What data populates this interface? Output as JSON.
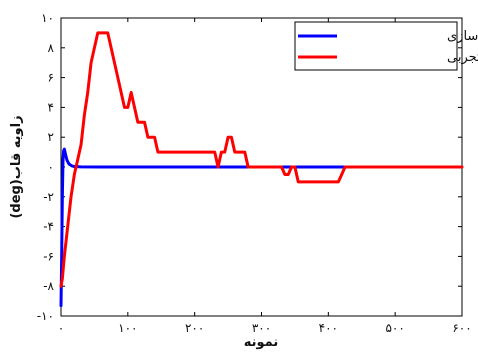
{
  "chart_data": {
    "type": "line",
    "xlabel": "نمونه",
    "ylabel": "زاویه قاب(deg)",
    "xlim": [
      0,
      600
    ],
    "ylim": [
      -10,
      10
    ],
    "x_ticks": [
      0,
      100,
      200,
      300,
      400,
      500,
      600
    ],
    "y_ticks": [
      -10,
      -8,
      -6,
      -4,
      -2,
      0,
      2,
      4,
      6,
      8,
      10
    ],
    "x_tick_labels": [
      "۰",
      "۱۰۰",
      "۲۰۰",
      "۳۰۰",
      "۴۰۰",
      "۵۰۰",
      "۶۰۰"
    ],
    "y_tick_labels": [
      "-۱۰",
      "-۸",
      "-۶",
      "-۴",
      "-۲",
      "۰",
      "۲",
      "۴",
      "۶",
      "۸",
      "۱۰"
    ],
    "grid": false,
    "legend_position": "top-right",
    "series": [
      {
        "name": "نتایج شبیه سازی",
        "color": "#0000ff",
        "x": [
          0,
          1,
          2,
          3,
          4,
          5,
          6,
          7,
          9,
          12,
          16,
          20,
          30,
          60,
          100,
          200,
          300,
          400,
          440
        ],
        "y": [
          -9.3,
          -6.0,
          -2.0,
          0.5,
          1.1,
          1.2,
          1.0,
          0.8,
          0.45,
          0.2,
          0.08,
          0.03,
          0.01,
          0.0,
          0.0,
          0.0,
          0.0,
          0.0,
          0.0
        ]
      },
      {
        "name": "داده های تجربی",
        "color": "#ff0000",
        "x": [
          0,
          2,
          5,
          10,
          15,
          20,
          25,
          30,
          35,
          40,
          45,
          50,
          55,
          60,
          65,
          70,
          75,
          80,
          85,
          90,
          95,
          100,
          105,
          110,
          115,
          120,
          125,
          130,
          135,
          140,
          145,
          150,
          155,
          160,
          170,
          180,
          190,
          200,
          210,
          220,
          230,
          235,
          240,
          245,
          250,
          255,
          260,
          265,
          270,
          275,
          280,
          285,
          290,
          295,
          300,
          310,
          320,
          330,
          335,
          340,
          345,
          350,
          355,
          360,
          365,
          370,
          375,
          380,
          385,
          390,
          395,
          400,
          405,
          410,
          415,
          420,
          425,
          430,
          435,
          440,
          450,
          460,
          470,
          480,
          490,
          500,
          510,
          520,
          530,
          540,
          550,
          560,
          570,
          580,
          590,
          600
        ],
        "y": [
          -8,
          -7.5,
          -6,
          -4,
          -2,
          -0.5,
          0.5,
          1.5,
          3.5,
          5,
          7,
          8,
          9,
          9,
          9,
          9,
          8,
          7,
          6,
          5,
          4,
          4,
          5,
          4,
          3,
          3,
          3,
          2,
          2,
          2,
          1,
          1,
          1,
          1,
          1,
          1,
          1,
          1,
          1,
          1,
          1,
          0,
          1,
          1,
          2,
          2,
          1,
          1,
          1,
          1,
          0,
          0,
          0,
          0,
          0,
          0,
          0,
          0,
          -0.5,
          -0.5,
          0,
          0,
          -1,
          -1,
          -1,
          -1,
          -1,
          -1,
          -1,
          -1,
          -1,
          -1,
          -1,
          -1,
          -1,
          -0.5,
          0,
          0,
          0,
          0,
          0,
          0,
          0,
          0,
          0,
          0,
          0,
          0,
          0,
          0,
          0,
          0,
          0,
          0,
          0,
          0
        ]
      }
    ]
  }
}
